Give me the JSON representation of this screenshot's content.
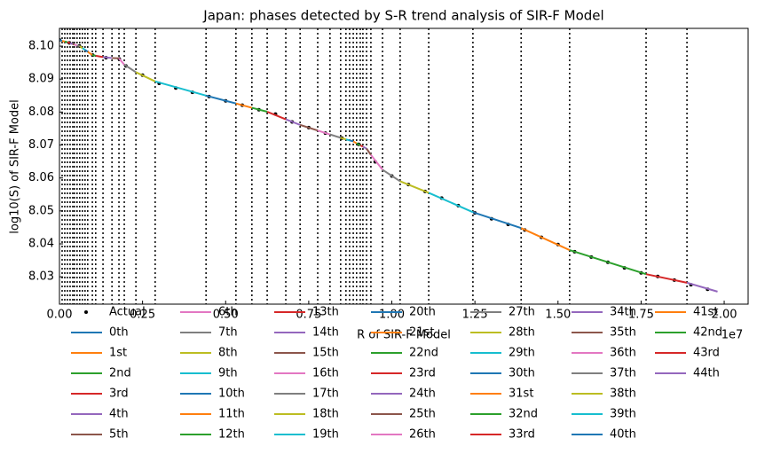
{
  "chart_data": {
    "type": "line",
    "title": "Japan: phases detected by S-R trend analysis of SIR-F Model",
    "xlabel": "R of SIR-F Model",
    "ylabel": "log10(S) of SIR-F Model",
    "x_offset_label": "1e7",
    "xlim": [
      0,
      2.072
    ],
    "ylim": [
      8.0217,
      8.1054
    ],
    "xticks": [
      {
        "value": 0,
        "label": "0.00"
      },
      {
        "value": 0.25,
        "label": "0.25"
      },
      {
        "value": 0.5,
        "label": "0.50"
      },
      {
        "value": 0.75,
        "label": "0.75"
      },
      {
        "value": 1,
        "label": "1.00"
      },
      {
        "value": 1.25,
        "label": "1.25"
      },
      {
        "value": 1.5,
        "label": "1.50"
      },
      {
        "value": 1.75,
        "label": "1.75"
      },
      {
        "value": 2,
        "label": "2.00"
      }
    ],
    "yticks": [
      8.03,
      8.04,
      8.05,
      8.06,
      8.07,
      8.08,
      8.09,
      {
        "value": 8.1,
        "label": "8.10"
      }
    ],
    "grid": false,
    "vline_color": "#000000",
    "vlines": [
      0.008,
      0.016,
      0.024,
      0.032,
      0.04,
      0.045,
      0.053,
      0.061,
      0.069,
      0.077,
      0.085,
      0.099,
      0.109,
      0.131,
      0.158,
      0.179,
      0.195,
      0.23,
      0.288,
      0.441,
      0.531,
      0.579,
      0.625,
      0.681,
      0.724,
      0.777,
      0.814,
      0.846,
      0.862,
      0.873,
      0.884,
      0.894,
      0.905,
      0.913,
      0.924,
      0.937,
      0.972,
      1.025,
      1.111,
      1.244,
      1.389,
      1.535,
      1.765,
      1.888
    ],
    "series": [
      {
        "name": "Actual",
        "color": "#000000",
        "style": "scatter",
        "x": [
          0,
          0.03,
          0.06,
          0.1,
          0.14,
          0.18,
          0.2,
          0.25,
          0.3,
          0.35,
          0.4,
          0.45,
          0.5,
          0.55,
          0.6,
          0.65,
          0.7,
          0.75,
          0.8,
          0.85,
          0.9,
          0.95,
          1.0,
          1.05,
          1.1,
          1.15,
          1.2,
          1.25,
          1.3,
          1.35,
          1.4,
          1.45,
          1.5,
          1.55,
          1.6,
          1.65,
          1.7,
          1.75,
          1.8,
          1.85,
          1.9,
          1.95
        ],
        "values": [
          8.1019,
          8.101,
          8.1001,
          8.0973,
          8.0965,
          8.0961,
          8.094,
          8.0912,
          8.0887,
          8.0873,
          8.086,
          8.0847,
          8.0834,
          8.0821,
          8.0807,
          8.0794,
          8.077,
          8.0753,
          8.0736,
          8.0721,
          8.0702,
          8.0649,
          8.0606,
          8.058,
          8.0559,
          8.0539,
          8.0516,
          8.0494,
          8.0476,
          8.0459,
          8.0442,
          8.042,
          8.0398,
          8.0376,
          8.036,
          8.0344,
          8.0327,
          8.0312,
          8.0301,
          8.029,
          8.0276,
          8.0262
        ]
      },
      {
        "name": "0th",
        "color": "#1f77b4",
        "style": "line",
        "x": [
          0,
          0.008
        ],
        "values": [
          8.1019,
          8.1016
        ]
      },
      {
        "name": "1st",
        "color": "#ff7f0e",
        "style": "line",
        "x": [
          0.008,
          0.016
        ],
        "values": [
          8.1016,
          8.1014
        ]
      },
      {
        "name": "2nd",
        "color": "#2ca02c",
        "style": "line",
        "x": [
          0.016,
          0.024
        ],
        "values": [
          8.1014,
          8.1012
        ]
      },
      {
        "name": "3rd",
        "color": "#d62728",
        "style": "line",
        "x": [
          0.024,
          0.032
        ],
        "values": [
          8.1012,
          8.1009
        ]
      },
      {
        "name": "4th",
        "color": "#9467bd",
        "style": "line",
        "x": [
          0.032,
          0.04
        ],
        "values": [
          8.1009,
          8.1006
        ]
      },
      {
        "name": "5th",
        "color": "#8c564b",
        "style": "line",
        "x": [
          0.04,
          0.045
        ],
        "values": [
          8.1006,
          8.1005
        ]
      },
      {
        "name": "6th",
        "color": "#e377c2",
        "style": "line",
        "x": [
          0.045,
          0.053
        ],
        "values": [
          8.1005,
          8.1002
        ]
      },
      {
        "name": "7th",
        "color": "#7f7f7f",
        "style": "line",
        "x": [
          0.053,
          0.061
        ],
        "values": [
          8.1002,
          8.1
        ]
      },
      {
        "name": "8th",
        "color": "#bcbd22",
        "style": "line",
        "x": [
          0.061,
          0.069
        ],
        "values": [
          8.1,
          8.0994
        ]
      },
      {
        "name": "9th",
        "color": "#17becf",
        "style": "line",
        "x": [
          0.069,
          0.077
        ],
        "values": [
          8.0994,
          8.0989
        ]
      },
      {
        "name": "10th",
        "color": "#1f77b4",
        "style": "line",
        "x": [
          0.077,
          0.085
        ],
        "values": [
          8.0989,
          8.0983
        ]
      },
      {
        "name": "11th",
        "color": "#ff7f0e",
        "style": "line",
        "x": [
          0.085,
          0.099
        ],
        "values": [
          8.0983,
          8.0973
        ]
      },
      {
        "name": "12th",
        "color": "#2ca02c",
        "style": "line",
        "x": [
          0.099,
          0.109
        ],
        "values": [
          8.0973,
          8.0971
        ]
      },
      {
        "name": "13th",
        "color": "#d62728",
        "style": "line",
        "x": [
          0.109,
          0.131
        ],
        "values": [
          8.0971,
          8.0967
        ]
      },
      {
        "name": "14th",
        "color": "#9467bd",
        "style": "line",
        "x": [
          0.131,
          0.158
        ],
        "values": [
          8.0967,
          8.0964
        ]
      },
      {
        "name": "15th",
        "color": "#8c564b",
        "style": "line",
        "x": [
          0.158,
          0.179
        ],
        "values": [
          8.0964,
          8.0963
        ]
      },
      {
        "name": "16th",
        "color": "#e377c2",
        "style": "line",
        "x": [
          0.179,
          0.195
        ],
        "values": [
          8.0963,
          8.0944
        ]
      },
      {
        "name": "17th",
        "color": "#7f7f7f",
        "style": "line",
        "x": [
          0.195,
          0.23
        ],
        "values": [
          8.0944,
          8.0921
        ]
      },
      {
        "name": "18th",
        "color": "#bcbd22",
        "style": "line",
        "x": [
          0.23,
          0.288
        ],
        "values": [
          8.0921,
          8.0893
        ]
      },
      {
        "name": "19th",
        "color": "#17becf",
        "style": "line",
        "x": [
          0.288,
          0.441
        ],
        "values": [
          8.0893,
          8.085
        ]
      },
      {
        "name": "20th",
        "color": "#1f77b4",
        "style": "line",
        "x": [
          0.441,
          0.531
        ],
        "values": [
          8.085,
          8.0826
        ]
      },
      {
        "name": "21st",
        "color": "#ff7f0e",
        "style": "line",
        "x": [
          0.531,
          0.579
        ],
        "values": [
          8.0826,
          8.0813
        ]
      },
      {
        "name": "22nd",
        "color": "#2ca02c",
        "style": "line",
        "x": [
          0.579,
          0.625
        ],
        "values": [
          8.0813,
          8.0801
        ]
      },
      {
        "name": "23rd",
        "color": "#d62728",
        "style": "line",
        "x": [
          0.625,
          0.681
        ],
        "values": [
          8.0801,
          8.0778
        ]
      },
      {
        "name": "24th",
        "color": "#9467bd",
        "style": "line",
        "x": [
          0.681,
          0.724
        ],
        "values": [
          8.0778,
          8.0761
        ]
      },
      {
        "name": "25th",
        "color": "#8c564b",
        "style": "line",
        "x": [
          0.724,
          0.777
        ],
        "values": [
          8.0761,
          8.0744
        ]
      },
      {
        "name": "26th",
        "color": "#e377c2",
        "style": "line",
        "x": [
          0.777,
          0.814
        ],
        "values": [
          8.0744,
          8.0732
        ]
      },
      {
        "name": "27th",
        "color": "#7f7f7f",
        "style": "line",
        "x": [
          0.814,
          0.846
        ],
        "values": [
          8.0732,
          8.0722
        ]
      },
      {
        "name": "28th",
        "color": "#bcbd22",
        "style": "line",
        "x": [
          0.846,
          0.862
        ],
        "values": [
          8.0722,
          8.0717
        ]
      },
      {
        "name": "29th",
        "color": "#17becf",
        "style": "line",
        "x": [
          0.862,
          0.873
        ],
        "values": [
          8.0717,
          8.0714
        ]
      },
      {
        "name": "30th",
        "color": "#1f77b4",
        "style": "line",
        "x": [
          0.873,
          0.884
        ],
        "values": [
          8.0714,
          8.0711
        ]
      },
      {
        "name": "31st",
        "color": "#ff7f0e",
        "style": "line",
        "x": [
          0.884,
          0.894
        ],
        "values": [
          8.0711,
          8.0705
        ]
      },
      {
        "name": "32nd",
        "color": "#2ca02c",
        "style": "line",
        "x": [
          0.894,
          0.905
        ],
        "values": [
          8.0705,
          8.0699
        ]
      },
      {
        "name": "33rd",
        "color": "#d62728",
        "style": "line",
        "x": [
          0.905,
          0.913
        ],
        "values": [
          8.0699,
          8.0695
        ]
      },
      {
        "name": "34th",
        "color": "#9467bd",
        "style": "line",
        "x": [
          0.913,
          0.924
        ],
        "values": [
          8.0695,
          8.0689
        ]
      },
      {
        "name": "35th",
        "color": "#8c564b",
        "style": "line",
        "x": [
          0.924,
          0.937
        ],
        "values": [
          8.0689,
          8.067
        ]
      },
      {
        "name": "36th",
        "color": "#e377c2",
        "style": "line",
        "x": [
          0.937,
          0.972
        ],
        "values": [
          8.067,
          8.0625
        ]
      },
      {
        "name": "37th",
        "color": "#7f7f7f",
        "style": "line",
        "x": [
          0.972,
          1.025
        ],
        "values": [
          8.0625,
          8.059
        ]
      },
      {
        "name": "38th",
        "color": "#bcbd22",
        "style": "line",
        "x": [
          1.025,
          1.111
        ],
        "values": [
          8.059,
          8.0555
        ]
      },
      {
        "name": "39th",
        "color": "#17becf",
        "style": "line",
        "x": [
          1.111,
          1.244
        ],
        "values": [
          8.0555,
          8.0496
        ]
      },
      {
        "name": "40th",
        "color": "#1f77b4",
        "style": "line",
        "x": [
          1.244,
          1.389
        ],
        "values": [
          8.0496,
          8.0448
        ]
      },
      {
        "name": "41st",
        "color": "#ff7f0e",
        "style": "line",
        "x": [
          1.389,
          1.535
        ],
        "values": [
          8.0448,
          8.0381
        ]
      },
      {
        "name": "42nd",
        "color": "#2ca02c",
        "style": "line",
        "x": [
          1.535,
          1.765
        ],
        "values": [
          8.0381,
          8.0308
        ]
      },
      {
        "name": "43rd",
        "color": "#d62728",
        "style": "line",
        "x": [
          1.765,
          1.888
        ],
        "values": [
          8.0308,
          8.0282
        ]
      },
      {
        "name": "44th",
        "color": "#9467bd",
        "style": "line",
        "x": [
          1.888,
          1.98
        ],
        "values": [
          8.0282,
          8.0255
        ]
      }
    ]
  }
}
